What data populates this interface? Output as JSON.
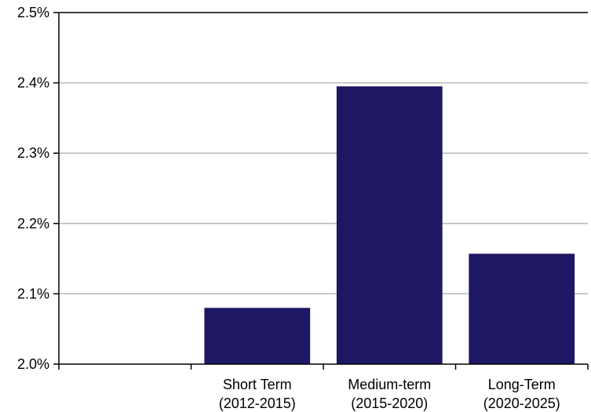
{
  "chart_data": {
    "type": "bar",
    "categories": [
      [
        "Short Term",
        "(2012-2015)"
      ],
      [
        "Medium-term",
        "(2015-2020)"
      ],
      [
        "Long-Term",
        "(2020-2025)"
      ]
    ],
    "values": [
      2.08,
      2.395,
      2.157
    ],
    "ylim": [
      2.0,
      2.5
    ],
    "yticks": [
      2.0,
      2.1,
      2.2,
      2.3,
      2.4,
      2.5
    ],
    "ytick_labels": [
      "2.0%",
      "2.1%",
      "2.2%",
      "2.3%",
      "2.4%",
      "2.5%"
    ],
    "grid": true,
    "bar_color": "#1e1764",
    "grid_color": "#b0b0b0"
  }
}
